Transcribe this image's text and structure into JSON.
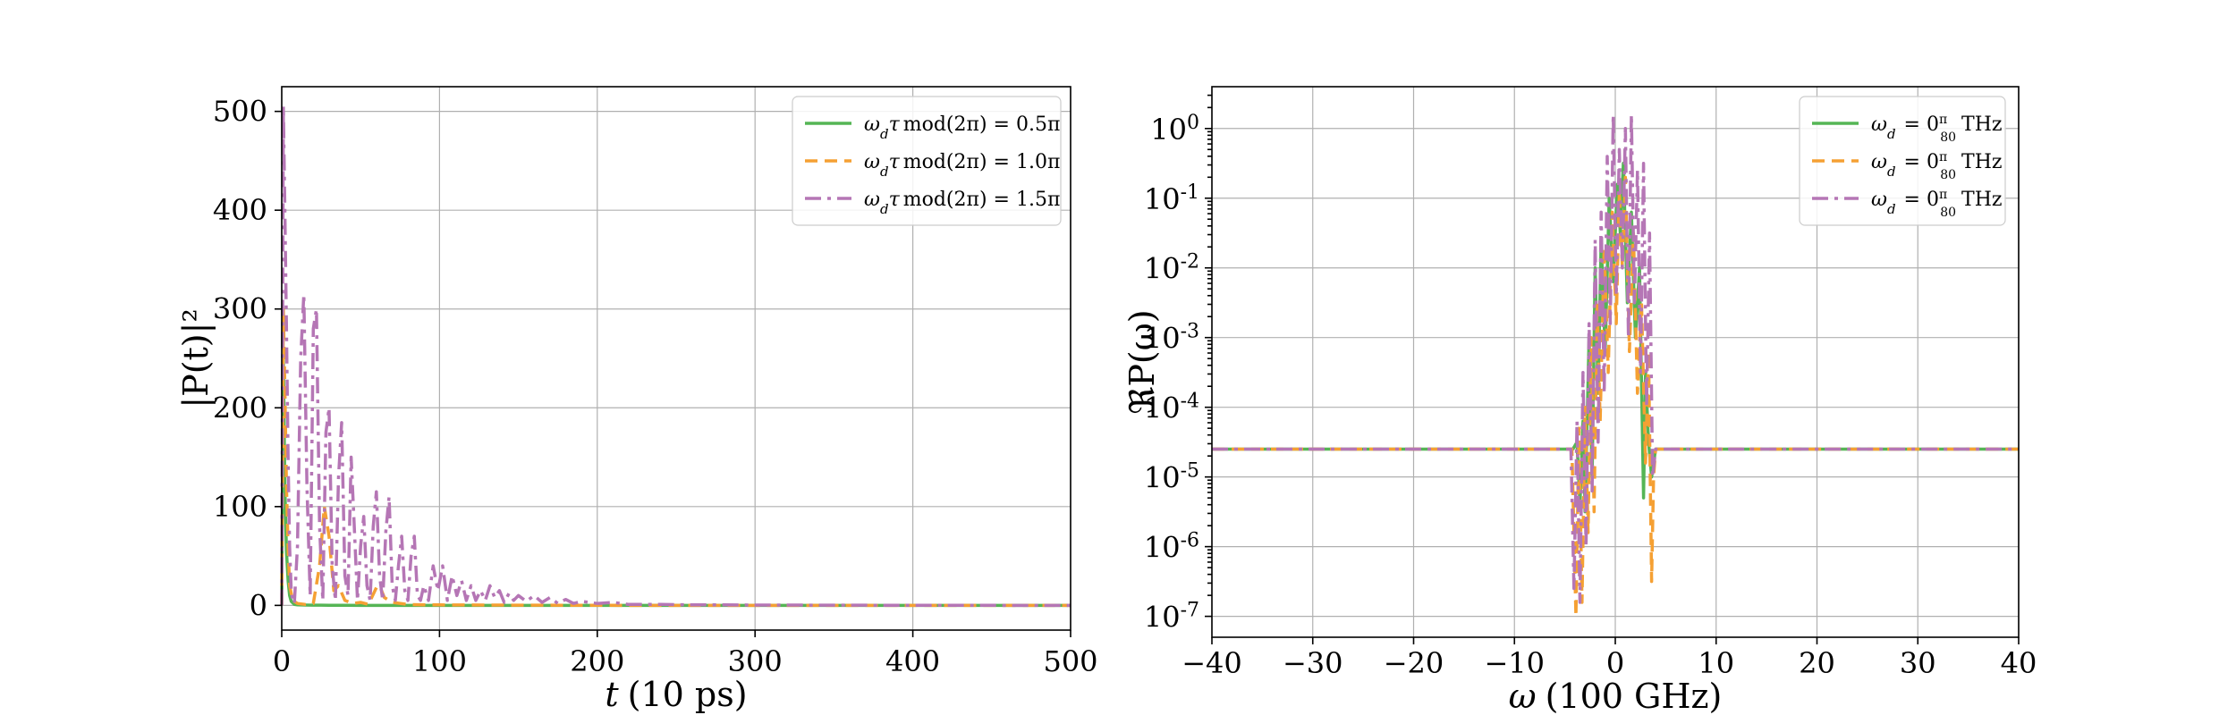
{
  "chart_data": [
    {
      "type": "line",
      "xlabel_var": "t",
      "xlabel_unit": "(10 ps)",
      "ylabel": "|P(t)|²",
      "xlim": [
        0,
        500
      ],
      "ylim": [
        -25,
        525
      ],
      "x_ticks": [
        0,
        100,
        200,
        300,
        400,
        500
      ],
      "y_ticks": [
        0,
        100,
        200,
        300,
        400,
        500
      ],
      "grid": true,
      "legend_position": "top-right",
      "series": [
        {
          "name": "ω_d τ mod(2π) = 0.5π",
          "color": "#55b555",
          "dash": "solid",
          "x": [
            0,
            1,
            2,
            3,
            4,
            5,
            6,
            8,
            10,
            15,
            20,
            25,
            30,
            35,
            40,
            50,
            60,
            100,
            200,
            300,
            400,
            500
          ],
          "y": [
            0,
            250,
            120,
            55,
            25,
            10,
            4,
            1,
            0.5,
            0.3,
            0.2,
            0.2,
            0.1,
            0.1,
            0.1,
            0,
            0,
            0,
            0,
            0,
            0,
            0
          ]
        },
        {
          "name": "ω_d τ mod(2π) = 1.0π",
          "color": "#f5a033",
          "dash": "dashed",
          "x": [
            0,
            1,
            2,
            3,
            4,
            5,
            7,
            10,
            15,
            20,
            24,
            27,
            30,
            33,
            36,
            40,
            45,
            50,
            55,
            60,
            62,
            65,
            70,
            80,
            90,
            100,
            150,
            200,
            300,
            400,
            500
          ],
          "y": [
            0,
            300,
            220,
            120,
            60,
            20,
            5,
            2,
            1,
            2,
            40,
            100,
            70,
            15,
            20,
            5,
            2,
            3,
            1,
            18,
            20,
            8,
            3,
            1,
            0.5,
            0.5,
            0.2,
            0.1,
            0,
            0,
            0
          ]
        },
        {
          "name": "ω_d τ mod(2π) = 1.5π",
          "color": "#b576b5",
          "dash": "dashdot",
          "x": [
            0,
            1,
            2,
            3,
            4,
            5,
            6,
            7,
            8,
            10,
            12,
            14,
            16,
            18,
            20,
            22,
            24,
            26,
            28,
            30,
            32,
            34,
            36,
            38,
            40,
            42,
            44,
            46,
            48,
            50,
            52,
            54,
            56,
            58,
            60,
            62,
            64,
            66,
            68,
            70,
            72,
            74,
            76,
            78,
            80,
            82,
            84,
            86,
            88,
            90,
            93,
            96,
            99,
            102,
            105,
            108,
            111,
            114,
            117,
            120,
            123,
            126,
            129,
            132,
            135,
            138,
            141,
            144,
            147,
            150,
            155,
            160,
            165,
            170,
            175,
            180,
            185,
            190,
            200,
            210,
            220,
            240,
            260,
            280,
            300,
            350,
            400,
            450,
            500
          ],
          "y": [
            0,
            505,
            400,
            280,
            150,
            60,
            15,
            5,
            2,
            60,
            250,
            315,
            120,
            10,
            280,
            300,
            80,
            5,
            175,
            200,
            40,
            5,
            130,
            185,
            30,
            10,
            150,
            80,
            5,
            60,
            90,
            20,
            5,
            80,
            115,
            30,
            5,
            75,
            110,
            20,
            5,
            40,
            70,
            15,
            5,
            50,
            70,
            10,
            5,
            20,
            5,
            40,
            15,
            40,
            5,
            30,
            10,
            25,
            5,
            20,
            5,
            15,
            5,
            20,
            8,
            15,
            3,
            12,
            5,
            10,
            4,
            10,
            3,
            8,
            2,
            6,
            2,
            4,
            2,
            3,
            1,
            1,
            0.5,
            0.5,
            0.3,
            0.2,
            0.1,
            0.1,
            0
          ]
        }
      ]
    },
    {
      "type": "line",
      "xlabel_var": "ω",
      "xlabel_unit": "(100 GHz)",
      "ylabel": "ℜP(ω)",
      "xlim": [
        -40,
        40
      ],
      "ylim_log10": [
        -7.3,
        0.6
      ],
      "log_y": true,
      "x_ticks": [
        -40,
        -30,
        -20,
        -10,
        0,
        10,
        20,
        30,
        40
      ],
      "x_tick_labels": [
        "−40",
        "−30",
        "−20",
        "−10",
        "0",
        "10",
        "20",
        "30",
        "40"
      ],
      "y_ticks_log10": [
        -7,
        -6,
        -5,
        -4,
        -3,
        -2,
        -1,
        0
      ],
      "y_tick_mantissa": "10",
      "y_tick_exponents": [
        "-7",
        "-6",
        "-5",
        "-4",
        "-3",
        "-2",
        "-1",
        "0"
      ],
      "grid": true,
      "legend_position": "top-right",
      "series": [
        {
          "name": "ω_d = 0 π/80 THz",
          "color": "#55b555",
          "dash": "solid",
          "x": [
            -40,
            -4.2,
            -3.8,
            -3.5,
            -3.2,
            -3.0,
            -2.6,
            -2.3,
            -2.0,
            -1.7,
            -1.4,
            -1.0,
            -0.6,
            -0.2,
            0.2,
            0.5,
            0.8,
            1.2,
            1.6,
            2.0,
            2.4,
            2.8,
            3.0,
            3.3,
            3.6,
            4.0,
            40
          ],
          "y_log10": [
            -4.6,
            -4.6,
            -4.5,
            -5.4,
            -4.2,
            -5.5,
            -3.0,
            -5.0,
            -2.0,
            -3.8,
            -1.6,
            -3.2,
            -1.0,
            -2.2,
            -0.8,
            -1.5,
            -0.5,
            -2.5,
            -1.2,
            -3.0,
            -2.0,
            -5.3,
            -3.5,
            -4.5,
            -5.0,
            -4.6,
            -4.6
          ]
        },
        {
          "name": "ω_d = 0 π/80 THz",
          "color": "#f5a033",
          "dash": "dashed",
          "x": [
            -40,
            -4.3,
            -3.9,
            -3.6,
            -3.3,
            -3.0,
            -2.7,
            -2.4,
            -2.1,
            -1.8,
            -1.5,
            -1.1,
            -0.7,
            -0.3,
            0.1,
            0.4,
            0.7,
            1.0,
            1.4,
            1.8,
            2.2,
            2.6,
            3.0,
            3.3,
            3.6,
            3.8,
            4.0,
            40
          ],
          "y_log10": [
            -4.6,
            -4.6,
            -7.0,
            -4.3,
            -6.8,
            -4.0,
            -5.8,
            -3.0,
            -5.5,
            -2.5,
            -4.2,
            -1.7,
            -3.5,
            -1.2,
            -2.8,
            -0.9,
            -2.0,
            -0.7,
            -3.2,
            -1.5,
            -3.8,
            -2.5,
            -4.8,
            -3.2,
            -6.5,
            -5.0,
            -4.6,
            -4.6
          ]
        },
        {
          "name": "ω_d = 0 π/80 THz",
          "color": "#b576b5",
          "dash": "dashdot",
          "x": [
            -40,
            -4.4,
            -4.1,
            -3.8,
            -3.5,
            -3.2,
            -2.9,
            -2.6,
            -2.3,
            -2.0,
            -1.7,
            -1.4,
            -1.1,
            -0.8,
            -0.5,
            -0.2,
            0.1,
            0.4,
            0.7,
            1.0,
            1.3,
            1.6,
            1.9,
            2.2,
            2.5,
            2.8,
            3.1,
            3.4,
            3.7,
            4.0,
            40
          ],
          "y_log10": [
            -4.6,
            -4.6,
            -6.6,
            -4.2,
            -6.8,
            -3.5,
            -6.0,
            -2.8,
            -5.2,
            -1.6,
            -4.5,
            -1.2,
            -3.8,
            -0.4,
            -2.8,
            0.2,
            -2.4,
            -0.3,
            -2.0,
            0.0,
            -3.0,
            0.2,
            -2.5,
            -0.6,
            -3.5,
            -0.5,
            -4.0,
            -1.5,
            -5.0,
            -4.6,
            -4.6
          ]
        }
      ]
    }
  ]
}
